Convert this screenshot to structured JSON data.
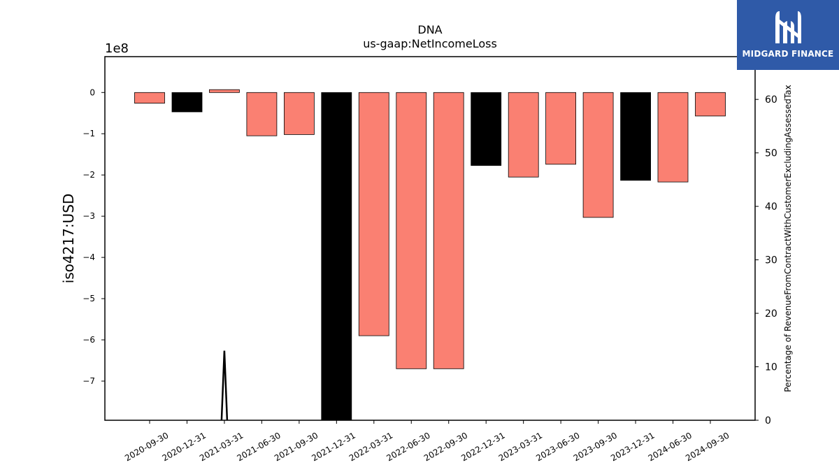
{
  "chart_data": {
    "type": "bar",
    "title": "DNA",
    "subtitle": "us-gaap:NetIncomeLoss",
    "ylabel": "iso4217:USD",
    "y2label": "Percentage of RevenueFromContractWithCustomerExcludingAssessedTax",
    "offset_label": "1e8",
    "ylim": [
      -7.95,
      0.87
    ],
    "y2lim": [
      0,
      68
    ],
    "yticks": [
      0,
      -1,
      -2,
      -3,
      -4,
      -5,
      -6,
      -7
    ],
    "ytick_labels": [
      "0",
      "−1",
      "−2",
      "−3",
      "−4",
      "−5",
      "−6",
      "−7"
    ],
    "y2ticks": [
      0,
      10,
      20,
      30,
      40,
      50,
      60
    ],
    "y2tick_labels": [
      "0",
      "10",
      "20",
      "30",
      "40",
      "50",
      "60"
    ],
    "categories": [
      "2020-09-30",
      "2020-12-31",
      "2021-03-31",
      "2021-06-30",
      "2021-09-30",
      "2021-12-31",
      "2022-03-31",
      "2022-06-30",
      "2022-09-30",
      "2022-12-31",
      "2023-03-31",
      "2023-06-30",
      "2023-09-30",
      "2023-12-31",
      "2024-06-30",
      "2024-09-30"
    ],
    "values": [
      -0.26,
      -0.47,
      0.07,
      -1.05,
      -1.02,
      -7.95,
      -5.9,
      -6.7,
      -6.7,
      -1.77,
      -2.05,
      -1.74,
      -3.03,
      -2.13,
      -2.17,
      -0.57
    ],
    "bar_colors": [
      "#fa8072",
      "#000000",
      "#fa8072",
      "#fa8072",
      "#fa8072",
      "#000000",
      "#fa8072",
      "#fa8072",
      "#fa8072",
      "#000000",
      "#fa8072",
      "#fa8072",
      "#fa8072",
      "#000000",
      "#fa8072",
      "#fa8072"
    ],
    "line_series": {
      "axis": "secondary",
      "color": "#000000",
      "points": [
        [
          "2021-03-31",
          13
        ]
      ]
    },
    "grid": false
  },
  "logo": {
    "text": "MIDGARD FINANCE",
    "background": "#2f5aa8"
  }
}
